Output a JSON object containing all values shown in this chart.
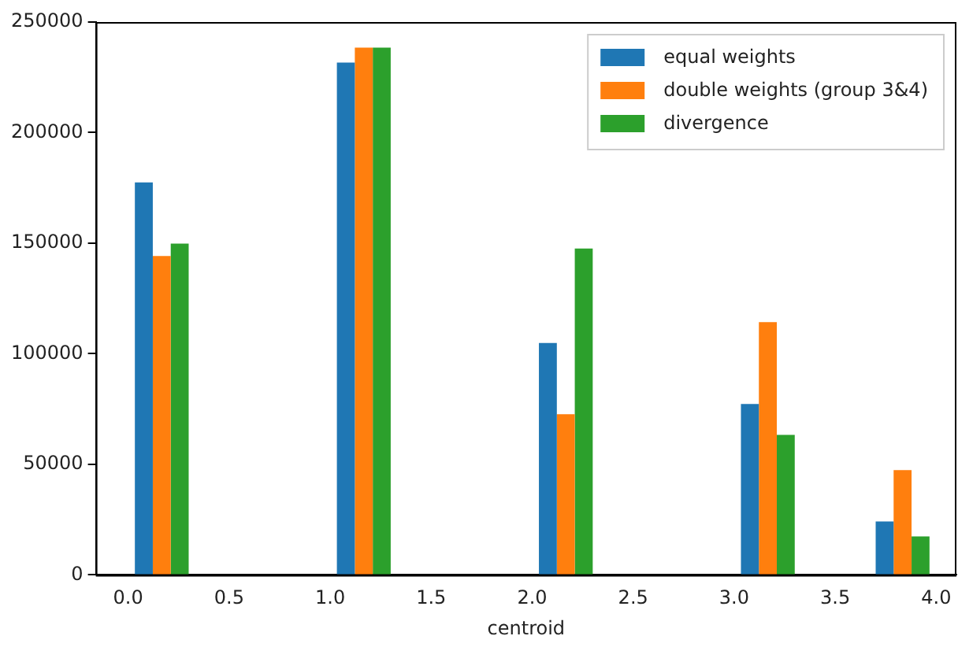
{
  "chart_data": {
    "type": "histogram",
    "xlabel": "centroid",
    "bins": [
      0,
      0.333,
      0.667,
      1,
      1.333,
      1.667,
      2,
      2.333,
      2.667,
      3,
      3.333,
      3.667,
      4
    ],
    "series": [
      {
        "name": "equal weights",
        "color": "#1f77b4",
        "values": [
          177500,
          0,
          0,
          231700,
          0,
          0,
          104900,
          0,
          0,
          77300,
          0,
          24200
        ]
      },
      {
        "name": "double weights (group 3&4)",
        "color": "#ff7f0e",
        "values": [
          144200,
          0,
          0,
          238400,
          0,
          0,
          72700,
          0,
          0,
          114300,
          0,
          47400
        ]
      },
      {
        "name": "divergence",
        "color": "#2ca02c",
        "values": [
          149800,
          0,
          0,
          238400,
          0,
          0,
          147600,
          0,
          0,
          63300,
          0,
          17400
        ]
      }
    ],
    "xlim": [
      -0.16,
      4.1
    ],
    "ylim": [
      0,
      250000
    ],
    "xticks": [
      {
        "value": 0,
        "label": "0.0"
      },
      {
        "value": 0.5,
        "label": "0.5"
      },
      {
        "value": 1,
        "label": "1.0"
      },
      {
        "value": 1.5,
        "label": "1.5"
      },
      {
        "value": 2,
        "label": "2.0"
      },
      {
        "value": 2.5,
        "label": "2.5"
      },
      {
        "value": 3,
        "label": "3.0"
      },
      {
        "value": 3.5,
        "label": "3.5"
      },
      {
        "value": 4,
        "label": "4.0"
      }
    ],
    "yticks": [
      0,
      50000,
      100000,
      150000,
      200000,
      250000
    ],
    "legend": "top right",
    "grid": false
  }
}
